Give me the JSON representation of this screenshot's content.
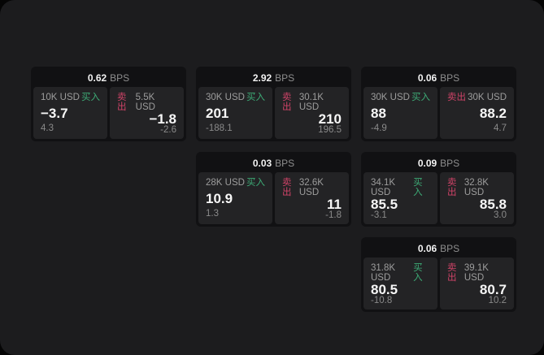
{
  "labels": {
    "buy": "买入",
    "sell": "卖出",
    "unit": "BPS"
  },
  "colors": {
    "buy_green": "#3dab76",
    "sell_red": "#cf4368",
    "window_background": "#1c1c1e",
    "card_background": "#111113",
    "panel_background": "#232325"
  },
  "cards": [
    {
      "bps": "0.62",
      "buy": {
        "size": "10K USD",
        "value": "−3.7",
        "sub": "4.3"
      },
      "sell": {
        "size": "5.5K USD",
        "value": "−1.8",
        "sub": "-2.6"
      }
    },
    {
      "bps": "2.92",
      "buy": {
        "size": "30K USD",
        "value": "201",
        "sub": "-188.1"
      },
      "sell": {
        "size": "30.1K USD",
        "value": "210",
        "sub": "196.5"
      }
    },
    {
      "bps": "0.06",
      "buy": {
        "size": "30K USD",
        "value": "88",
        "sub": "-4.9"
      },
      "sell": {
        "size": "30K USD",
        "value": "88.2",
        "sub": "4.7"
      }
    },
    {
      "bps": "0.03",
      "buy": {
        "size": "28K USD",
        "value": "10.9",
        "sub": "1.3"
      },
      "sell": {
        "size": "32.6K USD",
        "value": "11",
        "sub": "-1.8"
      }
    },
    {
      "bps": "0.09",
      "buy": {
        "size": "34.1K USD",
        "value": "85.5",
        "sub": "-3.1"
      },
      "sell": {
        "size": "32.8K USD",
        "value": "85.8",
        "sub": "3.0"
      }
    },
    {
      "bps": "0.06",
      "buy": {
        "size": "31.8K USD",
        "value": "80.5",
        "sub": "-10.8"
      },
      "sell": {
        "size": "39.1K USD",
        "value": "80.7",
        "sub": "10.2"
      }
    }
  ]
}
